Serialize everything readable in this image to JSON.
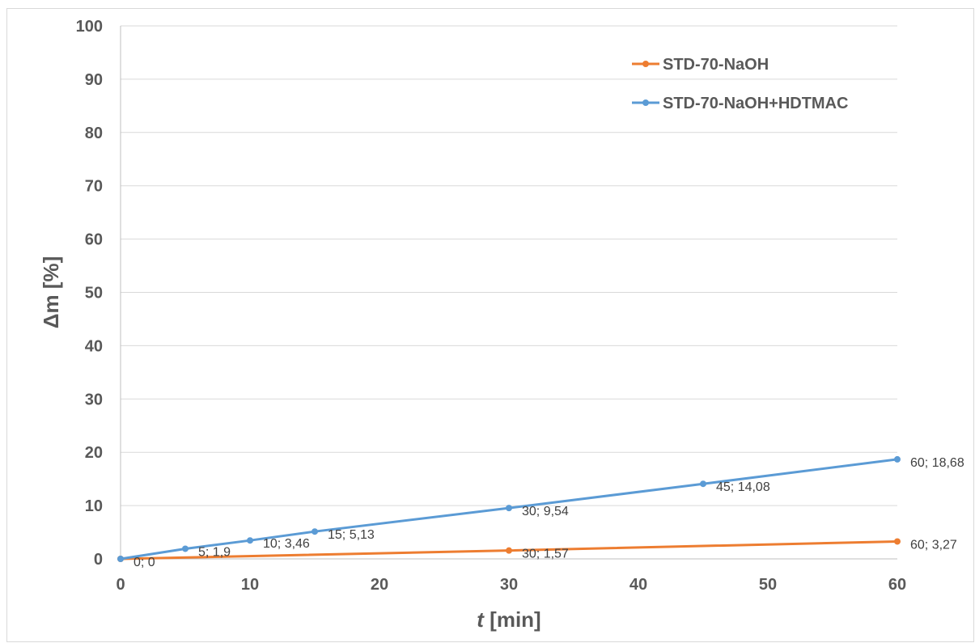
{
  "chart_data": {
    "type": "line",
    "title": "",
    "xlabel_italic": "t",
    "xlabel_rest": " [min]",
    "ylabel": "Δm [%]",
    "xlim": [
      0,
      60
    ],
    "ylim": [
      0,
      100
    ],
    "x_ticks": [
      0,
      10,
      20,
      30,
      40,
      50,
      60
    ],
    "y_ticks": [
      0,
      10,
      20,
      30,
      40,
      50,
      60,
      70,
      80,
      90,
      100
    ],
    "grid": true,
    "legend_position": "top-right",
    "series": [
      {
        "name": "STD-70-NaOH",
        "color": "#ED7D31",
        "points": [
          {
            "x": 0,
            "y": 0,
            "label": ""
          },
          {
            "x": 30,
            "y": 1.57,
            "label": "30; 1,57"
          },
          {
            "x": 60,
            "y": 3.27,
            "label": "60; 3,27"
          }
        ]
      },
      {
        "name": "STD-70-NaOH+HDTMAC",
        "color": "#5B9BD5",
        "points": [
          {
            "x": 0,
            "y": 0,
            "label": "0; 0"
          },
          {
            "x": 5,
            "y": 1.9,
            "label": "5; 1,9"
          },
          {
            "x": 10,
            "y": 3.46,
            "label": "10; 3,46"
          },
          {
            "x": 15,
            "y": 5.13,
            "label": "15; 5,13"
          },
          {
            "x": 30,
            "y": 9.54,
            "label": "30; 9,54"
          },
          {
            "x": 45,
            "y": 14.08,
            "label": "45; 14,08"
          },
          {
            "x": 60,
            "y": 18.68,
            "label": "60; 18,68"
          }
        ]
      }
    ]
  }
}
